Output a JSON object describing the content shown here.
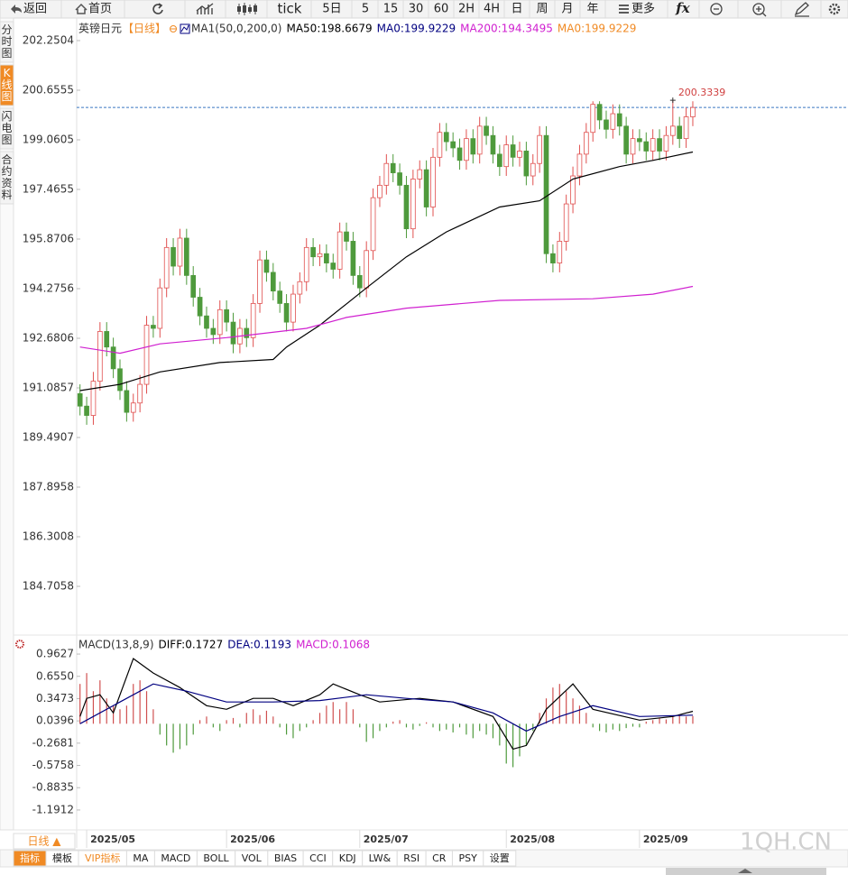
{
  "toolbar": {
    "back": "返回",
    "home": "首页",
    "periods": [
      "tick",
      "5日",
      "5",
      "15",
      "30",
      "60",
      "2H",
      "4H",
      "日",
      "周",
      "月",
      "年"
    ],
    "more": "更多",
    "fx": "fx"
  },
  "side_tabs": [
    "分时图",
    "K线图",
    "闪电图",
    "合约资料"
  ],
  "price_chart": {
    "type": "candlestick",
    "symbol": "英镑日元",
    "period": "【日线】",
    "indicator": "MA1(50,0,200,0)",
    "legend": [
      {
        "label": "MA50:198.6679",
        "color": "#000000"
      },
      {
        "label": "MA0:199.9229",
        "color": "#000080"
      },
      {
        "label": "MA200:194.3495",
        "color": "#d020d0"
      },
      {
        "label": "MA0:199.9229",
        "color": "#f08a24"
      }
    ],
    "up_color": "#e0504f",
    "down_color": "#4e9a3c",
    "ohlc": [
      [
        190.9,
        191.2,
        190.2,
        190.5
      ],
      [
        190.5,
        190.8,
        189.9,
        190.2
      ],
      [
        190.2,
        191.6,
        189.9,
        191.3
      ],
      [
        191.3,
        193.2,
        191.0,
        192.9
      ],
      [
        192.9,
        193.2,
        192.1,
        192.4
      ],
      [
        192.4,
        192.7,
        191.4,
        191.7
      ],
      [
        191.7,
        192.0,
        190.7,
        191.0
      ],
      [
        191.0,
        191.3,
        190.0,
        190.3
      ],
      [
        190.3,
        190.9,
        190.0,
        190.6
      ],
      [
        190.6,
        191.5,
        190.3,
        191.2
      ],
      [
        191.2,
        193.4,
        190.9,
        193.1
      ],
      [
        193.1,
        193.4,
        192.7,
        193.0
      ],
      [
        193.0,
        194.6,
        192.7,
        194.3
      ],
      [
        194.3,
        195.9,
        194.0,
        195.6
      ],
      [
        195.6,
        195.9,
        194.7,
        195.0
      ],
      [
        195.0,
        196.2,
        194.7,
        195.9
      ],
      [
        195.9,
        196.2,
        194.4,
        194.7
      ],
      [
        194.7,
        195.0,
        193.7,
        194.0
      ],
      [
        194.0,
        194.3,
        193.1,
        193.4
      ],
      [
        193.4,
        193.7,
        192.7,
        193.0
      ],
      [
        193.0,
        193.3,
        192.5,
        192.8
      ],
      [
        192.8,
        193.9,
        192.5,
        193.6
      ],
      [
        193.6,
        193.9,
        192.9,
        193.2
      ],
      [
        193.2,
        193.5,
        192.2,
        192.5
      ],
      [
        192.5,
        193.3,
        192.2,
        193.0
      ],
      [
        193.0,
        193.3,
        192.4,
        192.7
      ],
      [
        192.7,
        194.1,
        192.4,
        193.8
      ],
      [
        193.8,
        195.5,
        193.5,
        195.2
      ],
      [
        195.2,
        195.5,
        194.5,
        194.8
      ],
      [
        194.8,
        195.1,
        193.9,
        194.2
      ],
      [
        194.2,
        194.5,
        193.5,
        193.8
      ],
      [
        193.8,
        194.1,
        192.9,
        193.2
      ],
      [
        193.2,
        194.4,
        192.9,
        194.1
      ],
      [
        194.1,
        194.8,
        193.8,
        194.5
      ],
      [
        194.5,
        195.9,
        194.2,
        195.6
      ],
      [
        195.6,
        195.9,
        195.0,
        195.3
      ],
      [
        195.3,
        195.7,
        195.0,
        195.4
      ],
      [
        195.4,
        195.7,
        194.8,
        195.1
      ],
      [
        195.1,
        195.4,
        194.6,
        194.9
      ],
      [
        194.9,
        196.4,
        194.6,
        196.1
      ],
      [
        196.1,
        196.4,
        195.5,
        195.8
      ],
      [
        195.8,
        196.1,
        194.4,
        194.7
      ],
      [
        194.7,
        195.0,
        194.0,
        194.3
      ],
      [
        194.3,
        195.8,
        194.0,
        195.5
      ],
      [
        195.5,
        197.5,
        195.2,
        197.2
      ],
      [
        197.2,
        197.9,
        196.9,
        197.6
      ],
      [
        197.6,
        198.6,
        197.3,
        198.3
      ],
      [
        198.3,
        198.6,
        197.7,
        198.0
      ],
      [
        198.0,
        198.3,
        197.3,
        197.6
      ],
      [
        197.6,
        197.9,
        195.9,
        196.2
      ],
      [
        196.2,
        198.1,
        195.9,
        197.8
      ],
      [
        197.8,
        198.4,
        197.5,
        198.1
      ],
      [
        198.1,
        198.4,
        196.6,
        196.9
      ],
      [
        196.9,
        198.8,
        196.6,
        198.5
      ],
      [
        198.5,
        199.6,
        198.2,
        199.3
      ],
      [
        199.3,
        199.6,
        198.7,
        199.0
      ],
      [
        199.0,
        199.3,
        198.5,
        198.8
      ],
      [
        198.8,
        199.1,
        198.1,
        198.4
      ],
      [
        198.4,
        199.4,
        198.1,
        199.1
      ],
      [
        199.1,
        199.4,
        198.3,
        198.6
      ],
      [
        198.6,
        199.8,
        198.3,
        199.5
      ],
      [
        199.5,
        199.8,
        198.9,
        199.2
      ],
      [
        199.2,
        199.5,
        198.3,
        198.6
      ],
      [
        198.6,
        198.9,
        197.9,
        198.2
      ],
      [
        198.2,
        199.2,
        197.9,
        198.9
      ],
      [
        198.9,
        199.2,
        198.2,
        198.5
      ],
      [
        198.5,
        199.0,
        198.2,
        198.7
      ],
      [
        198.7,
        199.0,
        197.6,
        197.9
      ],
      [
        197.9,
        198.6,
        197.6,
        198.3
      ],
      [
        198.3,
        199.5,
        198.0,
        199.2
      ],
      [
        199.2,
        199.5,
        195.1,
        195.4
      ],
      [
        195.4,
        195.7,
        194.8,
        195.1
      ],
      [
        195.1,
        196.1,
        194.8,
        195.8
      ],
      [
        195.8,
        197.3,
        195.5,
        197.0
      ],
      [
        197.0,
        198.2,
        196.7,
        197.9
      ],
      [
        197.9,
        198.9,
        197.6,
        198.6
      ],
      [
        198.6,
        199.6,
        198.3,
        199.3
      ],
      [
        199.3,
        200.3,
        199.0,
        200.2
      ],
      [
        200.2,
        200.3,
        199.4,
        199.7
      ],
      [
        199.7,
        200.0,
        199.1,
        199.4
      ],
      [
        199.4,
        200.2,
        199.1,
        199.9
      ],
      [
        199.9,
        200.2,
        199.2,
        199.5
      ],
      [
        199.5,
        199.8,
        198.3,
        198.6
      ],
      [
        198.6,
        199.4,
        198.3,
        199.1
      ],
      [
        199.1,
        199.4,
        198.7,
        199.0
      ],
      [
        199.0,
        199.3,
        198.4,
        198.7
      ],
      [
        198.7,
        199.4,
        198.4,
        199.1
      ],
      [
        199.1,
        199.4,
        198.4,
        198.7
      ],
      [
        198.7,
        199.5,
        198.4,
        199.2
      ],
      [
        199.2,
        200.3339,
        198.9,
        199.5
      ],
      [
        199.5,
        199.8,
        198.8,
        199.1
      ],
      [
        199.1,
        200.1,
        198.8,
        199.8
      ],
      [
        199.8,
        200.3,
        199.5,
        200.1
      ]
    ],
    "lines": [
      {
        "name": "MA50",
        "color": "#000000",
        "x": [
          0,
          6,
          12,
          21,
          29,
          31,
          36,
          43,
          49,
          55,
          63,
          69,
          74,
          81,
          86,
          92
        ],
        "values": [
          191.0,
          191.2,
          191.6,
          191.9,
          192.0,
          192.4,
          193.1,
          194.3,
          195.3,
          196.1,
          196.9,
          197.1,
          197.8,
          198.2,
          198.4,
          198.6679
        ]
      },
      {
        "name": "MA200",
        "color": "#d020d0",
        "x": [
          0,
          6,
          12,
          22,
          34,
          40,
          49,
          63,
          77,
          86,
          92
        ],
        "values": [
          192.4,
          192.2,
          192.5,
          192.7,
          193.0,
          193.35,
          193.65,
          193.9,
          193.95,
          194.1,
          194.3495
        ]
      }
    ],
    "ylim": [
      183.2564,
      202.3954
    ],
    "yticks": [
      202.2504,
      200.6555,
      199.0605,
      197.4655,
      195.8706,
      194.2756,
      192.6806,
      191.0857,
      189.4907,
      187.8958,
      186.3008,
      184.7058
    ],
    "xlim": [
      -0.5,
      115.3
    ],
    "xticks": [
      {
        "value": 1,
        "label": "2025/05"
      },
      {
        "value": 22,
        "label": "2025/06"
      },
      {
        "value": 42,
        "label": "2025/07"
      },
      {
        "value": 64,
        "label": "2025/08"
      },
      {
        "value": 84,
        "label": "2025/09"
      }
    ],
    "last_price_line": true
  },
  "macd_chart": {
    "type": "macd",
    "title": "MACD(13,8,9)",
    "legend": [
      {
        "label": "DIFF:0.1727",
        "color": "#000000"
      },
      {
        "label": "DEA:0.1193",
        "color": "#000080"
      },
      {
        "label": "MACD:0.1068",
        "color": "#d020d0"
      }
    ],
    "up_color": "#d05050",
    "down_color": "#4e9a3c",
    "histogram": [
      0.55,
      0.7,
      0.45,
      0.6,
      0.35,
      0.25,
      0.2,
      0.25,
      0.55,
      0.6,
      0.45,
      0.2,
      -0.15,
      -0.3,
      -0.4,
      -0.35,
      -0.3,
      -0.15,
      0.05,
      0.1,
      -0.05,
      -0.1,
      0.05,
      0.08,
      -0.05,
      0.15,
      0.2,
      0.12,
      0.18,
      0.1,
      -0.05,
      -0.15,
      -0.2,
      -0.1,
      -0.05,
      0.05,
      0.15,
      0.25,
      0.3,
      0.2,
      0.3,
      0.2,
      -0.05,
      -0.25,
      -0.2,
      -0.1,
      -0.05,
      0.03,
      0.05,
      -0.05,
      -0.08,
      -0.03,
      0.02,
      -0.05,
      -0.1,
      -0.08,
      -0.12,
      -0.05,
      -0.15,
      -0.2,
      -0.1,
      -0.15,
      -0.2,
      -0.3,
      -0.55,
      -0.6,
      -0.45,
      -0.3,
      -0.1,
      0.15,
      0.35,
      0.5,
      0.55,
      0.45,
      0.35,
      0.25,
      0.15,
      -0.05,
      -0.1,
      -0.12,
      -0.08,
      -0.1,
      -0.06,
      -0.04,
      -0.05,
      0.03,
      0.05,
      0.08,
      0.06,
      0.1,
      0.12,
      0.1,
      0.1068
    ],
    "lines": [
      {
        "name": "DIFF",
        "color": "#000000",
        "x": [
          0,
          1,
          3,
          5,
          8,
          11,
          15,
          19,
          22,
          26,
          29,
          32,
          36,
          38,
          42,
          45,
          51,
          56,
          62,
          65,
          67,
          70,
          74,
          77,
          84,
          89,
          92
        ],
        "values": [
          0.1,
          0.35,
          0.4,
          0.15,
          0.9,
          0.7,
          0.5,
          0.25,
          0.2,
          0.35,
          0.35,
          0.25,
          0.4,
          0.55,
          0.4,
          0.3,
          0.35,
          0.3,
          0.1,
          -0.35,
          -0.3,
          0.2,
          0.55,
          0.2,
          0.05,
          0.1,
          0.1727
        ]
      },
      {
        "name": "DEA",
        "color": "#000080",
        "x": [
          0,
          6,
          11,
          16,
          22,
          29,
          36,
          43,
          49,
          56,
          62,
          67,
          72,
          77,
          84,
          92
        ],
        "values": [
          0.0,
          0.3,
          0.55,
          0.45,
          0.3,
          0.3,
          0.32,
          0.4,
          0.35,
          0.3,
          0.15,
          -0.1,
          0.1,
          0.25,
          0.1,
          0.1193
        ]
      }
    ],
    "ylim": [
      -1.4038,
      1.1503
    ],
    "yticks": [
      0.9627,
      {
        "value": 0.655,
        "label": "0.6550"
      },
      0.3473,
      0.0396,
      -0.2681,
      -0.5758,
      -0.8835,
      -1.1912
    ]
  },
  "bottom": {
    "period_button": "日线 ▲",
    "tabs": [
      "指标",
      "模板",
      "VIP指标",
      "MA",
      "MACD",
      "BOLL",
      "VOL",
      "BIAS",
      "CCI",
      "KDJ",
      "LW&",
      "RSI",
      "CR",
      "PSY",
      "设置"
    ],
    "watermark": "1QH.CN"
  }
}
